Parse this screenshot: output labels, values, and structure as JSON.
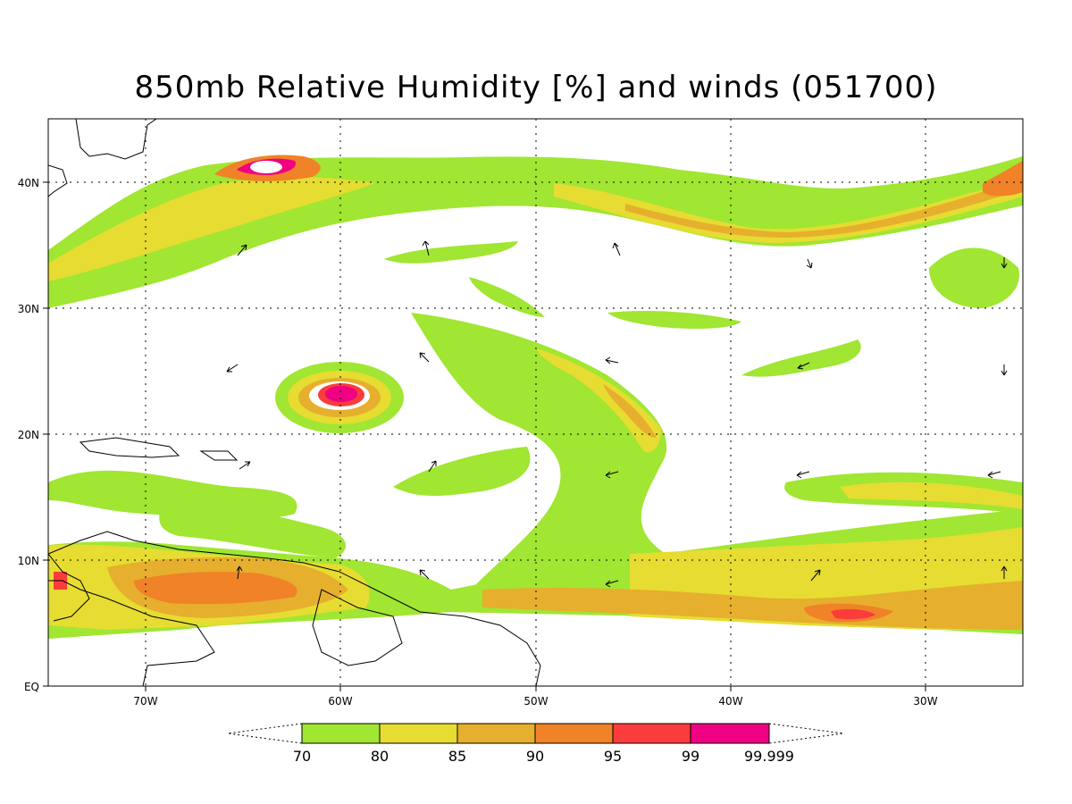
{
  "title": "850mb Relative Humidity [%] and winds (051700)",
  "map": {
    "lon_range": [
      -75,
      -25
    ],
    "lat_range": [
      0,
      45
    ],
    "lat_ticks": [
      {
        "value": 40,
        "label": "40N"
      },
      {
        "value": 30,
        "label": "30N"
      },
      {
        "value": 20,
        "label": "20N"
      },
      {
        "value": 10,
        "label": "10N"
      },
      {
        "value": 0,
        "label": "EQ"
      }
    ],
    "lon_ticks": [
      {
        "value": -70,
        "label": "70W"
      },
      {
        "value": -60,
        "label": "60W"
      },
      {
        "value": -50,
        "label": "50W"
      },
      {
        "value": -40,
        "label": "40W"
      },
      {
        "value": -30,
        "label": "30W"
      }
    ],
    "grid": "dotted"
  },
  "colorbar": {
    "levels": [
      "70",
      "80",
      "85",
      "90",
      "95",
      "99",
      "99.999"
    ],
    "colors": [
      "#a0e632",
      "#e6dc32",
      "#e6af2d",
      "#f08228",
      "#fa3c3c",
      "#f00082"
    ]
  }
}
